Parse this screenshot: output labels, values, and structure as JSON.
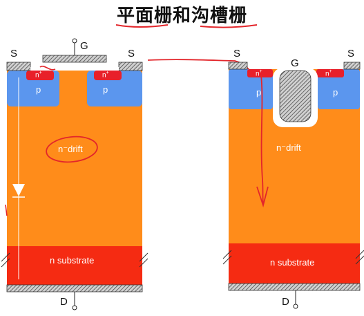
{
  "title": "平面栅和沟槽栅",
  "planar": {
    "source_left": "S",
    "source_right": "S",
    "gate": "G",
    "drain": "D",
    "p_left": "p",
    "p_right": "p",
    "nplus_left": "n",
    "nplus_right": "n",
    "nplus_sup": "+",
    "drift": "n⁻drift",
    "substrate": "n substrate"
  },
  "trench": {
    "source_left": "S",
    "source_right": "S",
    "gate": "G",
    "drain": "D",
    "p_left": "p",
    "p_right": "p",
    "nplus_left": "n",
    "nplus_right": "n",
    "nplus_sup": "+",
    "drift": "n⁻drift",
    "substrate": "n substrate"
  },
  "colors": {
    "drift": "#ff8c1a",
    "substrate": "#f52b12",
    "p_region": "#5b96ee",
    "nplus": "#e8202a",
    "metal": "#8c8c8c",
    "annotation": "#e3262b"
  }
}
